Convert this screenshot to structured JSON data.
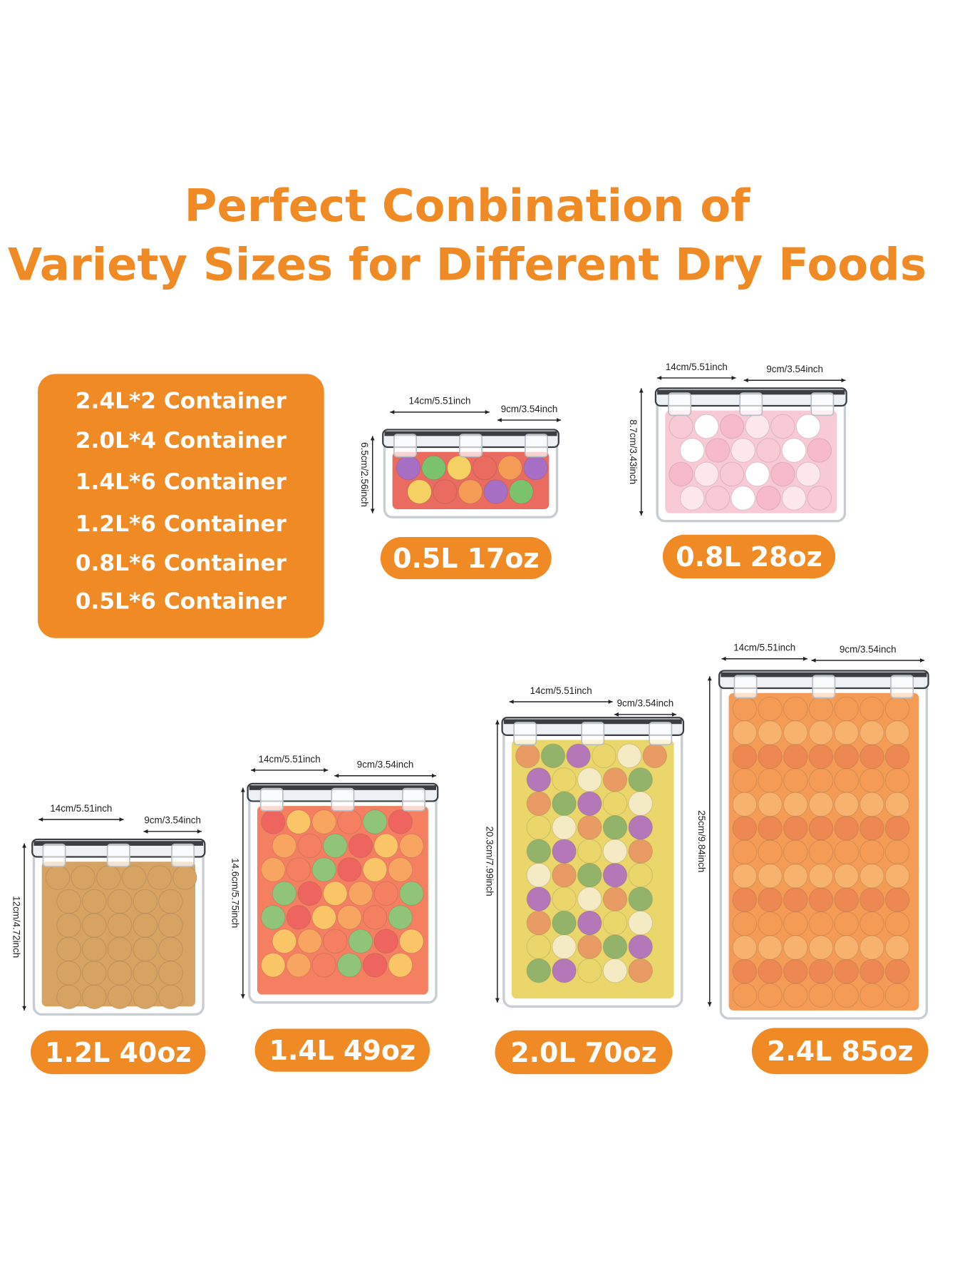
{
  "header": {
    "title_lines": [
      "Perfect Conbination of",
      "Variety Sizes for Different Dry Foods"
    ]
  },
  "set_contents": [
    "2.4L*2 Container",
    "2.0L*4 Container",
    "1.4L*6 Container",
    "1.2L*6 Container",
    "0.8L*6 Container",
    "0.5L*6 Container"
  ],
  "containers": [
    {
      "label": "0.5L 17oz",
      "width": "14cm/5.51inch",
      "depth": "9cm/3.54inch",
      "height": "6.5cm/2.56inch"
    },
    {
      "label": "0.8L 28oz",
      "width": "14cm/5.51inch",
      "depth": "9cm/3.54inch",
      "height": "8.7cm/3.43inch"
    },
    {
      "label": "1.2L 40oz",
      "width": "14cm/5.51inch",
      "depth": "9cm/3.54inch",
      "height": "12cm/4.72inch"
    },
    {
      "label": "1.4L 49oz",
      "width": "14cm/5.51inch",
      "depth": "9cm/3.54inch",
      "height": "14.6cm/5.75inch"
    },
    {
      "label": "2.0L 70oz",
      "width": "14cm/5.51inch",
      "depth": "9cm/3.54inch",
      "height": "20.3cm/7.99inch"
    },
    {
      "label": "2.4L 85oz",
      "width": "14cm/5.51inch",
      "depth": "9cm/3.54inch",
      "height": "25cm/9.84inch"
    }
  ]
}
